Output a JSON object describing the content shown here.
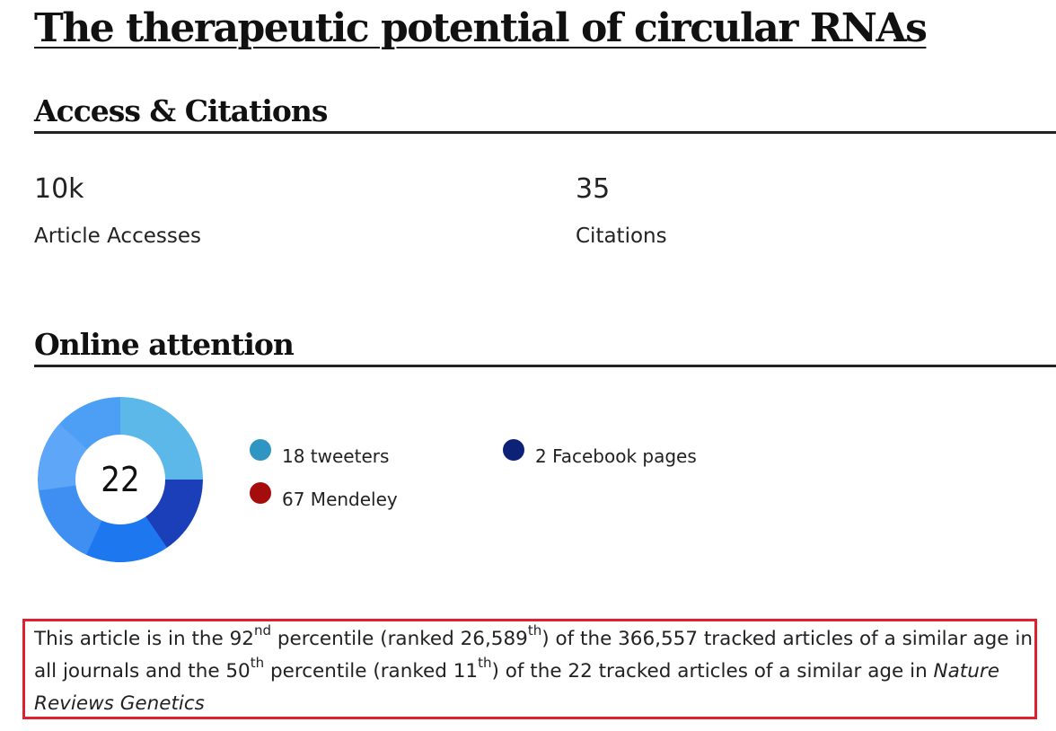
{
  "article": {
    "title": "The therapeutic potential of circular RNAs"
  },
  "access_citations": {
    "heading": "Access & Citations",
    "accesses_value": "10k",
    "accesses_label": "Article Accesses",
    "citations_value": "35",
    "citations_label": "Citations"
  },
  "online_attention": {
    "heading": "Online attention",
    "score": "22",
    "legend": [
      {
        "label": "18 tweeters",
        "color": "#2f95c2"
      },
      {
        "label": "2 Facebook pages",
        "color": "#0d2277"
      },
      {
        "label": "67 Mendeley",
        "color": "#a50d0d"
      }
    ],
    "donut_colors": [
      "#4d9ff5",
      "#5bb8e8",
      "#1a3fb8",
      "#1d78f0"
    ]
  },
  "percentile": {
    "p1": "This article is in the 92",
    "sup1": "nd",
    "p2": " percentile (ranked 26,589",
    "sup2": "th",
    "p3": ") of the 366,557 tracked articles of a similar age in all journals and the 50",
    "sup3": "th",
    "p4": " percentile (ranked 11",
    "sup4": "th",
    "p5": ") of the 22 tracked articles of a similar age in ",
    "journal": "Nature Reviews Genetics",
    "highlight_color": "#e0202f"
  }
}
